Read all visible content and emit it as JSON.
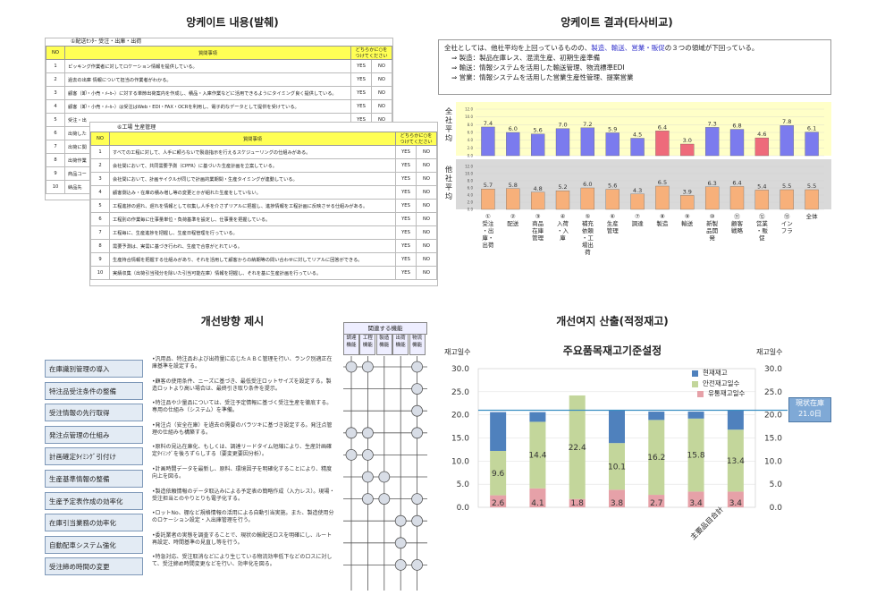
{
  "questionnaire": {
    "title": "앙케이트 내용(발췌)",
    "sheet1": {
      "subtitle": "①配送ｾﾝﾀｰ  受注・出庫・出荷",
      "headers": [
        "NO",
        "質問事項",
        "どちらかに○を\nつけてください"
      ],
      "rows": [
        {
          "no": "1",
          "text": "ピッキング作業者に対してロケーション情報を提供している。"
        },
        {
          "no": "2",
          "text": "過去の出庫 情報について担当の作業者がわかる。"
        },
        {
          "no": "3",
          "text": "顧客（卸・小売・ﾒｰｶｰ）に対する単節出荷案内を作成し、積品・入庫作業などに活用できるようにタイミング良く提供している。"
        },
        {
          "no": "4",
          "text": "顧客（卸・小売・ﾒｰｶｰ）は受注はWeb・EDI・FAX・OCRを利用し、電子的なデータとして提供を受けている。"
        },
        {
          "no": "5",
          "text": "受注・出"
        },
        {
          "no": "6",
          "text": "出荷した"
        },
        {
          "no": "7",
          "text": "出荷に関"
        },
        {
          "no": "8",
          "text": "出荷作業"
        },
        {
          "no": "9",
          "text": "商品コー"
        },
        {
          "no": "10",
          "text": "納品先"
        }
      ]
    },
    "sheet2": {
      "subtitle": "⑥工場  生産管理",
      "headers": [
        "NO",
        "質問事項",
        "どちらかに○を\nつけてください"
      ],
      "rows": [
        {
          "no": "1",
          "text": "すべての工程に対して、人手に頼らないで製造指示を行えるスケジューリングの仕組みがある。"
        },
        {
          "no": "2",
          "text": "会社間において、共同需要予測（CPFR）に基づいた生産計画を立案している。"
        },
        {
          "no": "3",
          "text": "会社間において、計画サイクルが同じで計画的業期間・生産タイミングが連動している。"
        },
        {
          "no": "4",
          "text": "顧客側込み・在庫の積み増し等の変更とかが組れた生産をしていない。"
        },
        {
          "no": "5",
          "text": "工程進捗の遅れ、遅れを情報として収集し人手を介さずリアルに把握し、進捗情報を工程計画に反映させる仕組みがある。"
        },
        {
          "no": "6",
          "text": "工程別の作業毎に仕事量単位・負荷基準を設定し、仕事量を把握している。"
        },
        {
          "no": "7",
          "text": "工程毎に、生産進捗を把握し、生産日程管理を行っている。"
        },
        {
          "no": "8",
          "text": "需要予測は、実需に基づき行われ、生産で合意がとれている。"
        },
        {
          "no": "9",
          "text": "生産持合情報を把握する仕組みがあり、それを活用して顧客からの納期等の問い合わせに対してリアルに回答ができる。"
        },
        {
          "no": "10",
          "text": "実績収集（出荷引当残分を除いた引当可能在庫）情報を把握し、それを基に生産計画を行っている。"
        }
      ]
    },
    "yes": "YES",
    "no": "NO"
  },
  "comparison": {
    "title": "앙케이트 결과(타사비교)",
    "summary_line1_pre": "全社としては、他社平均を上回っているものの、",
    "summary_line1_hl": "製造、輸送、営業・販促",
    "summary_line1_post": "の３つの領域が下回っている。",
    "summary_lines": [
      "⇒ 製造：製品在庫レス、混流生産、初期生産準備",
      "⇒ 輸送：情報システムを活用した輸送管理、物流標準EDI",
      "⇒ 営業：情報システムを活用した営業生産性管理、提案営業"
    ],
    "label_top": "全社平均",
    "label_bottom": "他社平均",
    "tick_labels": [
      "0.0",
      "2.0",
      "4.0",
      "6.0",
      "8.0",
      "10.0",
      "12.0"
    ]
  },
  "chart_data": [
    {
      "type": "bar",
      "title": "",
      "categories": [
        "①受注・出庫・出荷",
        "②配送",
        "③商品在庫管理",
        "④入荷・入庫",
        "⑤補充依頼・工場出荷",
        "⑥生産管理",
        "⑦調達",
        "⑧製造",
        "⑨輸送",
        "⑩新製品開発",
        "⑪顧客戦略",
        "⑫営業・販促",
        "⑬インフラ",
        "全体"
      ],
      "series": [
        {
          "name": "全社平均",
          "values": [
            7.4,
            6.0,
            5.6,
            7.0,
            7.2,
            5.9,
            4.5,
            6.4,
            3.0,
            7.3,
            6.8,
            4.6,
            7.8,
            6.1
          ]
        },
        {
          "name": "他社平均",
          "values": [
            5.7,
            5.8,
            4.8,
            5.2,
            6.0,
            5.6,
            4.3,
            6.5,
            3.9,
            6.3,
            6.4,
            5.4,
            5.5,
            5.5
          ]
        }
      ],
      "highlighted_categories": [
        "⑧製造",
        "⑨輸送",
        "⑫営業・販促"
      ],
      "ylim": [
        0,
        12
      ],
      "colors": {
        "top": "#7b7bee",
        "top_highlight": "#ee6b7b",
        "bottom": "#f7b07a",
        "top_bg": "#ffffc8",
        "bottom_bg": "#d9d9d9"
      }
    },
    {
      "type": "bar",
      "title": "주요품목재고기준설정",
      "ylabel_left": "재고일수",
      "ylabel_right": "재고일수",
      "x_label": "主要品目合計",
      "ylim": [
        0,
        30
      ],
      "y_ticks": [
        "0.0",
        "5.0",
        "10.0",
        "15.0",
        "20.0",
        "25.0",
        "30.0"
      ],
      "series": [
        {
          "name": "현재재고",
          "values": [
            8.4,
            2.1,
            0,
            7.1,
            1.8,
            1.5,
            4.2
          ]
        },
        {
          "name": "안전재고일수",
          "values": [
            9.6,
            14.4,
            22.4,
            10.1,
            16.2,
            15.8,
            13.4
          ]
        },
        {
          "name": "유통재고일수",
          "values": [
            2.6,
            4.1,
            1.8,
            3.8,
            2.7,
            3.4,
            3.4
          ]
        }
      ],
      "reference_line": 21.0,
      "reference_label_line1": "現状在庫",
      "reference_label_line2": "21.0日",
      "colors": {
        "current": "#4f81bd",
        "safety": "#c3d69b",
        "distribution": "#e6a1a8",
        "ref": "#3b8fc2"
      }
    }
  ],
  "improvement": {
    "title": "개선방향 제시",
    "related_header": "関連する機能",
    "related_cols": [
      "調達\n機能",
      "工程\n機能",
      "製造\n機能",
      "出荷\n機能",
      "物流\n機能"
    ],
    "items": [
      {
        "label": "在庫識別管理の導入",
        "desc": "•汎用品、特注品および出荷量に応じたＡＢＣ管理を行い、ランク別適正在庫基準を設定する。",
        "dots": [
          1,
          1,
          0,
          0,
          1
        ]
      },
      {
        "label": "特注品受注条件の整備",
        "desc": "•顧客の使用条件、ニーズに基づき、最低受注ロットサイズを設定する。製造ロットより高い場合は、最終引き取り条件を提示。",
        "dots": [
          0,
          0,
          0,
          0,
          1
        ]
      },
      {
        "label": "受注情報の先行取得",
        "desc": "•特注品や少量品については、受注予定情報に基づく受注生産を徹底する。専用の仕組み（システム）を準備。",
        "dots": [
          0,
          0,
          0,
          0,
          1
        ]
      },
      {
        "label": "発注点管理の仕組み",
        "desc": "•発注点（安全在庫）を過去の需要のバラツキに基づき設定する。発注点管理の仕組みも構築する。",
        "dots": [
          1,
          1,
          0,
          0,
          1
        ]
      },
      {
        "label": "計画確定ﾀｲﾐﾝｸﾞ引付け",
        "desc": "•原料の見込在庫化、もしくは、調達リードタイム短縮により、生産計画確定ﾀｲﾐﾝｸﾞを後ろずらしする（要変更要因分析）。",
        "dots": [
          1,
          1,
          0,
          0,
          0
        ]
      },
      {
        "label": "生産基準情報の整備",
        "desc": "•計画時間データを最新し、原料、環境因子を明確化することにより、精度向上を図る。",
        "dots": [
          0,
          1,
          1,
          0,
          0
        ]
      },
      {
        "label": "生産予定表作成の効率化",
        "desc": "•製造依頼情報のデータ取込みによる予定表の簡略作成（入力レス）。現場・受注担当とのやりとりも電子化する。",
        "dots": [
          0,
          1,
          1,
          0,
          1
        ]
      },
      {
        "label": "在庫引当業務の効率化",
        "desc": "•ロットNo、棚など規格情報の活用による自動引当実施。また、製造使用分のロケーション設定・入出庫管理を行う。",
        "dots": [
          0,
          0,
          0,
          1,
          1
        ]
      },
      {
        "label": "自動配車システム強化",
        "desc": "•委託業者の実態を調査することで、現状の輸配送ロスを明確にし、ルート再設定、時間基準の見直し等を行う。",
        "dots": [
          0,
          0,
          0,
          1,
          0
        ]
      },
      {
        "label": "受注締め時間の変更",
        "desc": "•特急対応、受注取消などにより生じている物流効率低下などのロスに対して、受注締め時間変更などを行い、効率化を図る。",
        "dots": [
          0,
          0,
          0,
          1,
          1
        ]
      }
    ]
  },
  "inventory": {
    "title": "개선여지 산출(적정재고)"
  }
}
